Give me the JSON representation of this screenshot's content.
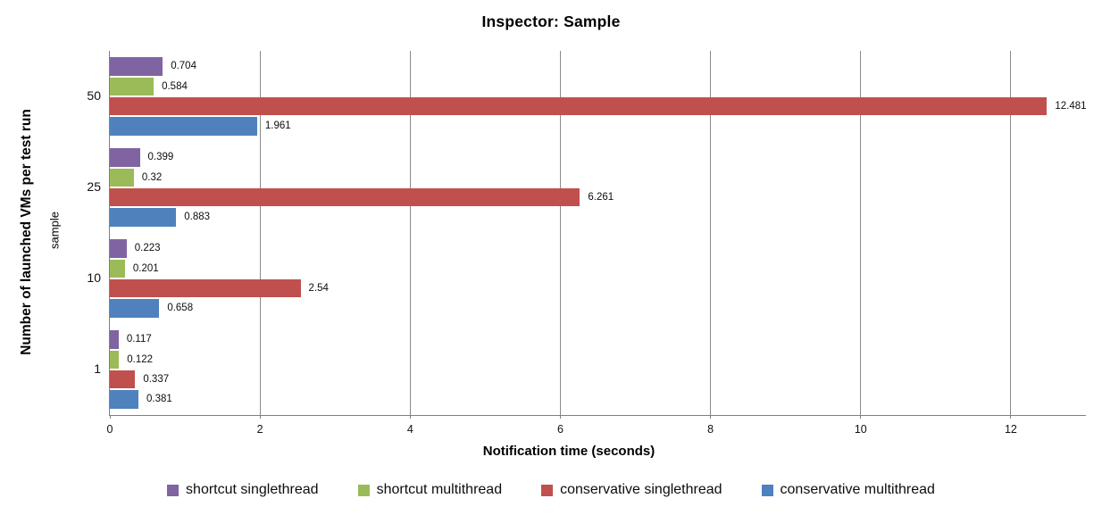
{
  "title": "Inspector: Sample",
  "chart_data": {
    "type": "bar",
    "orientation": "horizontal",
    "title": "Inspector: Sample",
    "xlabel": "Notification time (seconds)",
    "ylabel": "Number of launched VMs per test run",
    "ylabel_inner": "sample",
    "categories": [
      "50",
      "25",
      "10",
      "1"
    ],
    "series": [
      {
        "name": "shortcut singlethread",
        "color": "#8064A2",
        "values": [
          0.704,
          0.399,
          0.223,
          0.117
        ],
        "labels": [
          "0.704",
          "0.399",
          "0.223",
          "0.117"
        ]
      },
      {
        "name": "shortcut multithread",
        "color": "#9BBB59",
        "values": [
          0.584,
          0.32,
          0.201,
          0.122
        ],
        "labels": [
          "0.584",
          "0.32",
          "0.201",
          "0.122"
        ]
      },
      {
        "name": "conservative singlethread",
        "color": "#C0504D",
        "values": [
          12.481,
          6.261,
          2.54,
          0.337
        ],
        "labels": [
          "12.481",
          "6.261",
          "2.54",
          "0.337"
        ]
      },
      {
        "name": "conservative multithread",
        "color": "#4F81BD",
        "values": [
          1.961,
          0.883,
          0.658,
          0.381
        ],
        "labels": [
          "1.961",
          "0.883",
          "0.658",
          "0.381"
        ]
      }
    ],
    "x_ticks": [
      "0",
      "2",
      "4",
      "6",
      "8",
      "10",
      "12"
    ],
    "x_tick_values": [
      0,
      2,
      4,
      6,
      8,
      10,
      12
    ],
    "xlim": [
      0,
      13
    ],
    "grid": true,
    "legend_position": "bottom",
    "colors": {
      "gridline": "#8a8a8a",
      "axis": "#7f7f7f"
    }
  }
}
